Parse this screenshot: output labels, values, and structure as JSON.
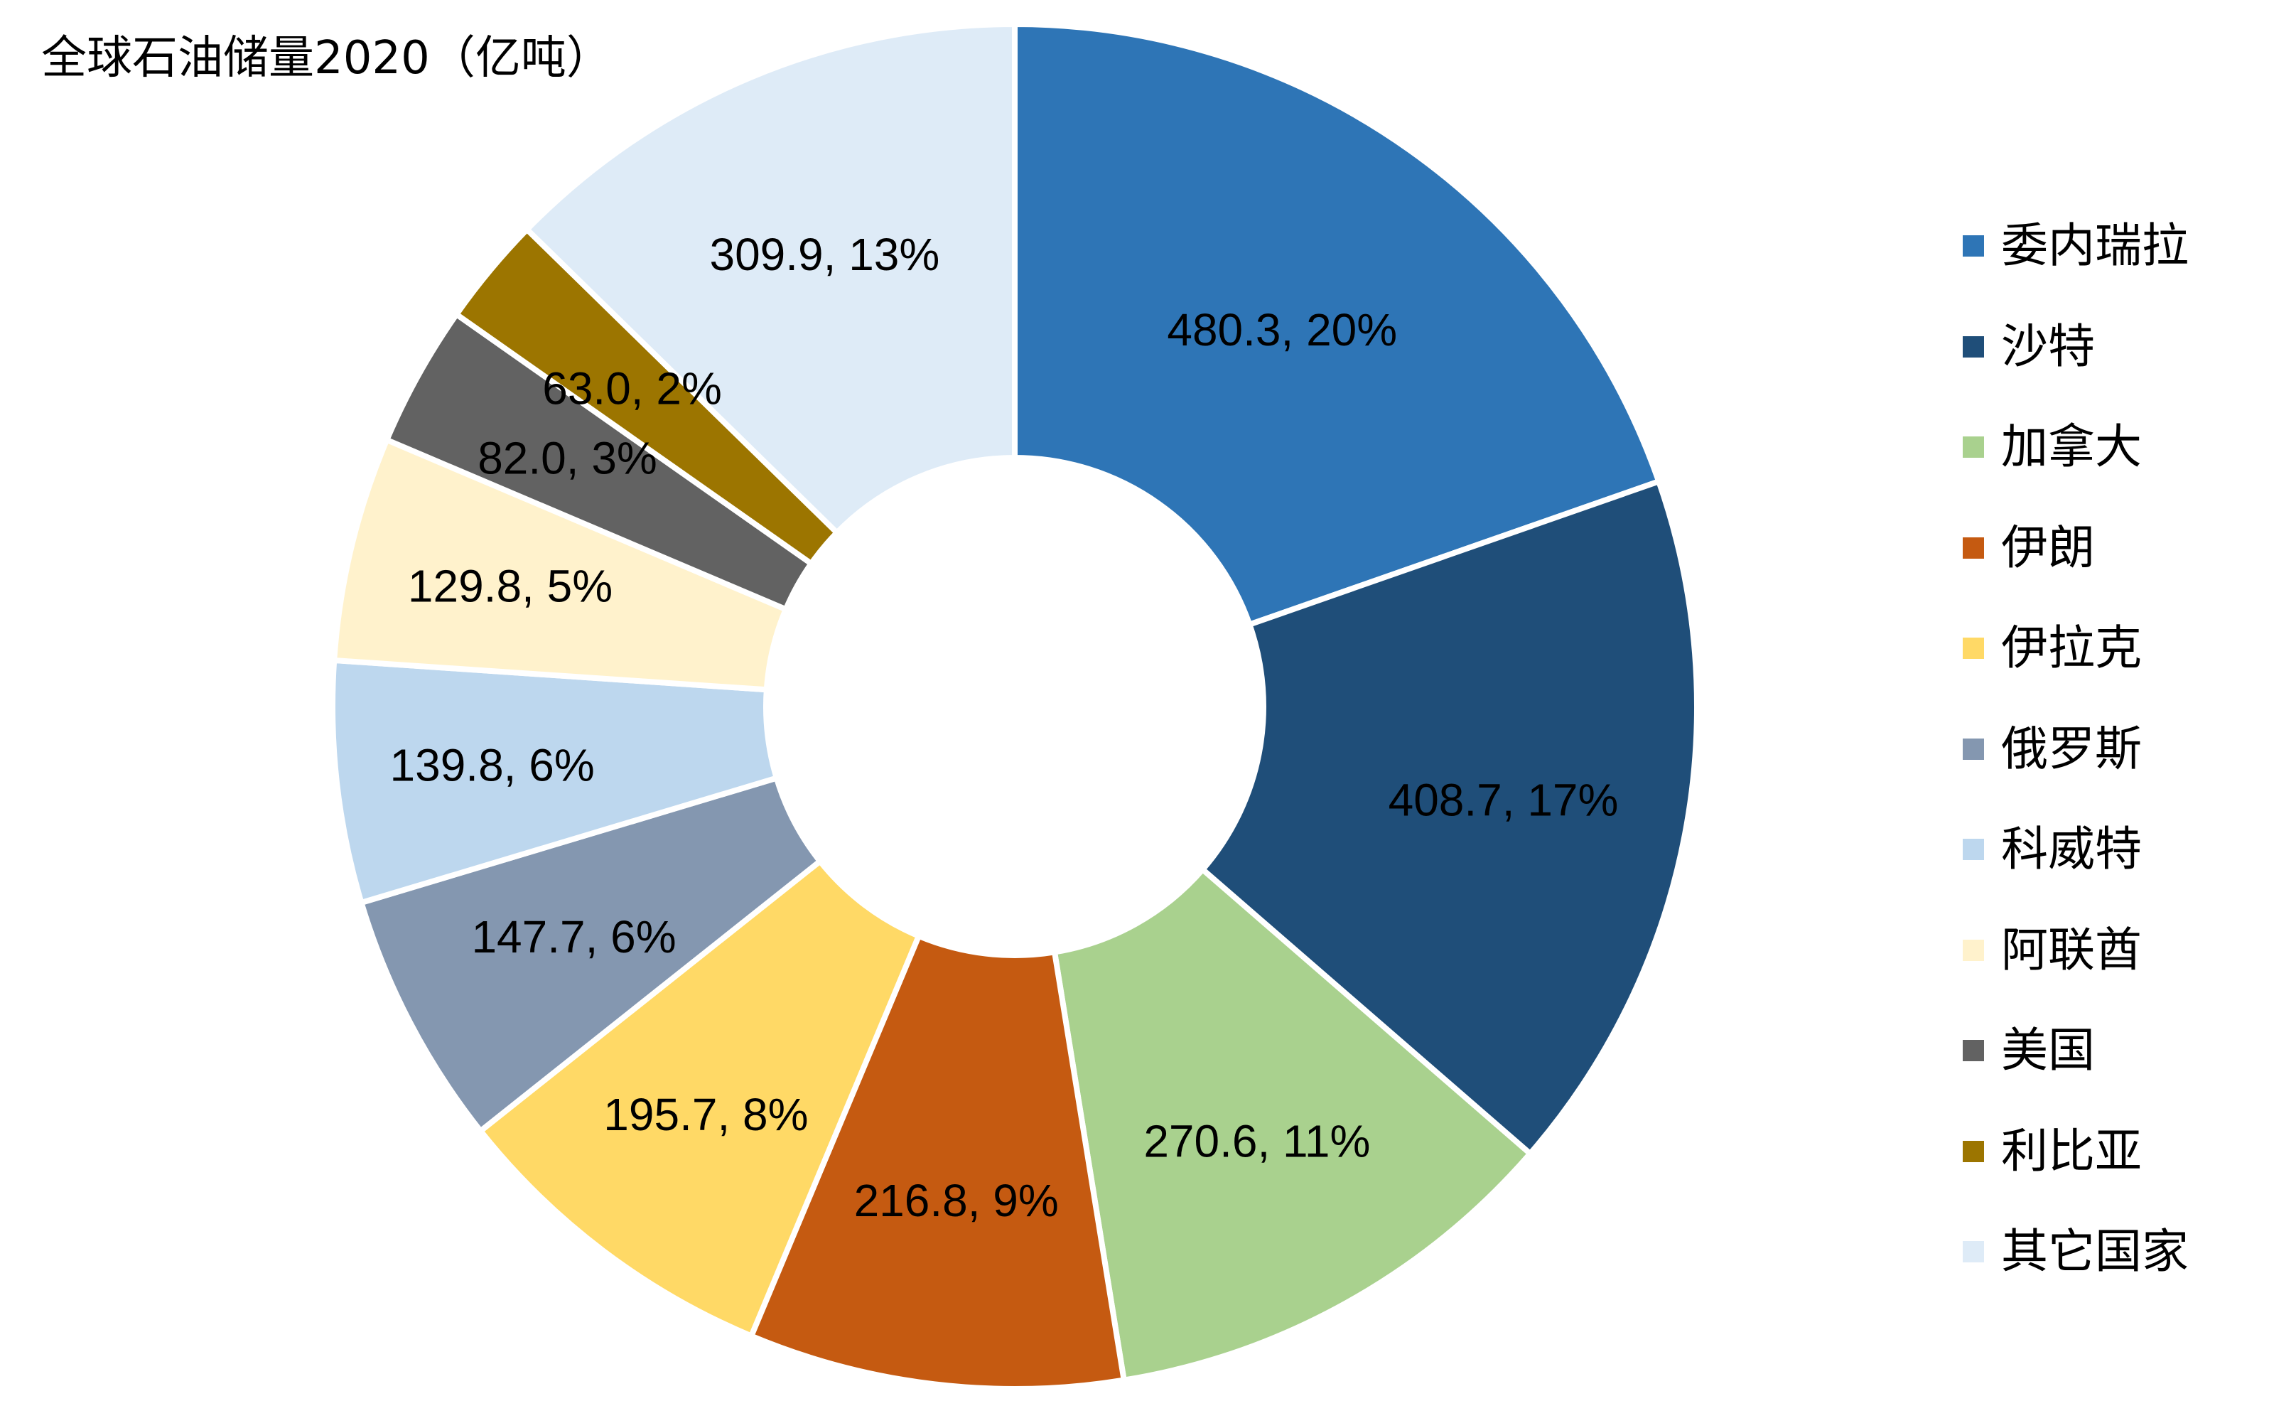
{
  "chart_data": {
    "type": "pie",
    "variant": "donut",
    "title": "全球石油储量2020（亿吨）",
    "legend_position": "right",
    "categories": [
      "委内瑞拉",
      "沙特",
      "加拿大",
      "伊朗",
      "伊拉克",
      "俄罗斯",
      "科威特",
      "阿联酋",
      "美国",
      "利比亚",
      "其它国家"
    ],
    "values": [
      480.3,
      408.7,
      270.6,
      216.8,
      195.7,
      147.7,
      139.8,
      129.8,
      82.0,
      63.0,
      309.9
    ],
    "percentages": [
      "20%",
      "17%",
      "11%",
      "9%",
      "8%",
      "6%",
      "6%",
      "5%",
      "3%",
      "2%",
      "13%"
    ],
    "data_labels": [
      "480.3, 20%",
      "408.7, 17%",
      "270.6, 11%",
      "216.8, 9%",
      "195.7, 8%",
      "147.7, 6%",
      "139.8, 6%",
      "129.8, 5%",
      "82.0, 3%",
      "63.0, 2%",
      "309.9, 13%"
    ],
    "colors": [
      "#2E75B6",
      "#1F4E79",
      "#A9D18E",
      "#C55A11",
      "#FFD966",
      "#8497B0",
      "#BDD7EE",
      "#FFF2CC",
      "#626262",
      "#9C7500",
      "#DEEBF7"
    ]
  }
}
